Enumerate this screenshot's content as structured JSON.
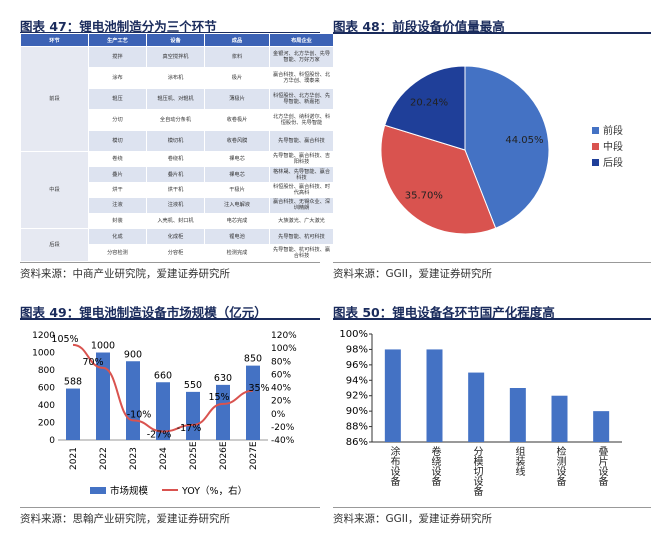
{
  "fig47": {
    "title": "图表 47：锂电池制造分为三个环节",
    "source": "资料来源：中商产业研究院，爱建证券研究所",
    "headers": [
      "环节",
      "生产工艺",
      "设备",
      "成品",
      "布局企业"
    ],
    "groups": [
      {
        "name": "前段",
        "rows": [
          [
            "搅拌",
            "真空搅拌机",
            "浆料",
            "金银河、北方华创、先导智能、万好万家"
          ],
          [
            "涂布",
            "涂布机",
            "极片",
            "赢合科技、科恒股份、北方华创、璞泰来"
          ],
          [
            "辊压",
            "辊压机、对辊机",
            "薄极片",
            "科恒股份、北方华创、先导智能、新嘉拓"
          ],
          [
            "分切",
            "全自动分条机",
            "收卷极片",
            "北方华创、纳科诺尔、科恒股份、先导智能"
          ],
          [
            "模切",
            "模切机",
            "收卷风膜",
            "先导智能、赢合科技"
          ]
        ]
      },
      {
        "name": "中段",
        "rows": [
          [
            "卷绕",
            "卷绕机",
            "裸电芯",
            "先导智能、赢合科技、吉阳科技"
          ],
          [
            "叠片",
            "叠片机",
            "裸电芯",
            "格林晟、先导智能、赢合科技"
          ],
          [
            "烘干",
            "烘干机",
            "干极片",
            "科恒股份、赢合科技、时代高科"
          ],
          [
            "注液",
            "注液机",
            "注入电解液",
            "赢合科技、无锡众业、深圳精朗"
          ],
          [
            "封装",
            "入壳机、封口机",
            "电芯完成",
            "大族激光、广大激光"
          ]
        ]
      },
      {
        "name": "后段",
        "rows": [
          [
            "化成",
            "化成柜",
            "锂电池",
            "先导智能、杭可科技"
          ],
          [
            "分容检测",
            "分容柜",
            "检测完成",
            "先导智能、杭可科技、赢合科技"
          ]
        ]
      }
    ]
  },
  "fig48": {
    "title": "图表 48：前段设备价值量最高",
    "source": "资料来源：GGII，爱建证券研究所",
    "chart_data": {
      "type": "pie",
      "slices": [
        {
          "name": "前段",
          "value": 44.05,
          "label": "44.05%",
          "color": "#4472c4"
        },
        {
          "name": "中段",
          "value": 35.7,
          "label": "35.70%",
          "color": "#d9534f"
        },
        {
          "name": "后段",
          "value": 20.24,
          "label": "20.24%",
          "color": "#1f3f99"
        }
      ],
      "legend": "right"
    }
  },
  "fig49": {
    "title": "图表 49：锂电池制造设备市场规模（亿元）",
    "source": "资料来源：思翰产业研究院，爱建证券研究所",
    "chart_data": {
      "type": "bar+line",
      "categories": [
        "2021",
        "2022",
        "2023",
        "2024",
        "2025E",
        "2026E",
        "2027E"
      ],
      "series": [
        {
          "name": "市场规模",
          "type": "bar",
          "values": [
            588,
            1000,
            900,
            660,
            550,
            630,
            850
          ],
          "labels": [
            "588",
            "1000",
            "900",
            "660",
            "550",
            "630",
            "850"
          ],
          "color": "#4472c4"
        },
        {
          "name": "YOY（%，右）",
          "type": "line",
          "values": [
            105,
            70,
            -10,
            -27,
            -17,
            15,
            35
          ],
          "labels": [
            "105%",
            "70%",
            "-10%",
            "-27%",
            "-17%",
            "15%",
            "35%"
          ],
          "color": "#d9534f"
        }
      ],
      "ylim": [
        0,
        1200
      ],
      "yticks": [
        "0",
        "200",
        "400",
        "600",
        "800",
        "1000",
        "1200"
      ],
      "y2lim": [
        -40,
        120
      ],
      "y2ticks": [
        "-40%",
        "-20%",
        "0%",
        "20%",
        "40%",
        "60%",
        "80%",
        "100%",
        "120%"
      ],
      "legend": "bottom"
    }
  },
  "fig50": {
    "title": "图表 50：锂电设备各环节国产化程度高",
    "source": "资料来源：GGII，爱建证券研究所",
    "chart_data": {
      "type": "bar",
      "categories": [
        "涂布设备",
        "卷绕设备",
        "分模切设备",
        "组装线",
        "检测设备",
        "叠片设备"
      ],
      "values": [
        98,
        98,
        95,
        93,
        92,
        90
      ],
      "ylim": [
        86,
        100
      ],
      "yticks": [
        "86%",
        "88%",
        "90%",
        "92%",
        "94%",
        "96%",
        "98%",
        "100%"
      ],
      "color": "#4472c4"
    }
  }
}
